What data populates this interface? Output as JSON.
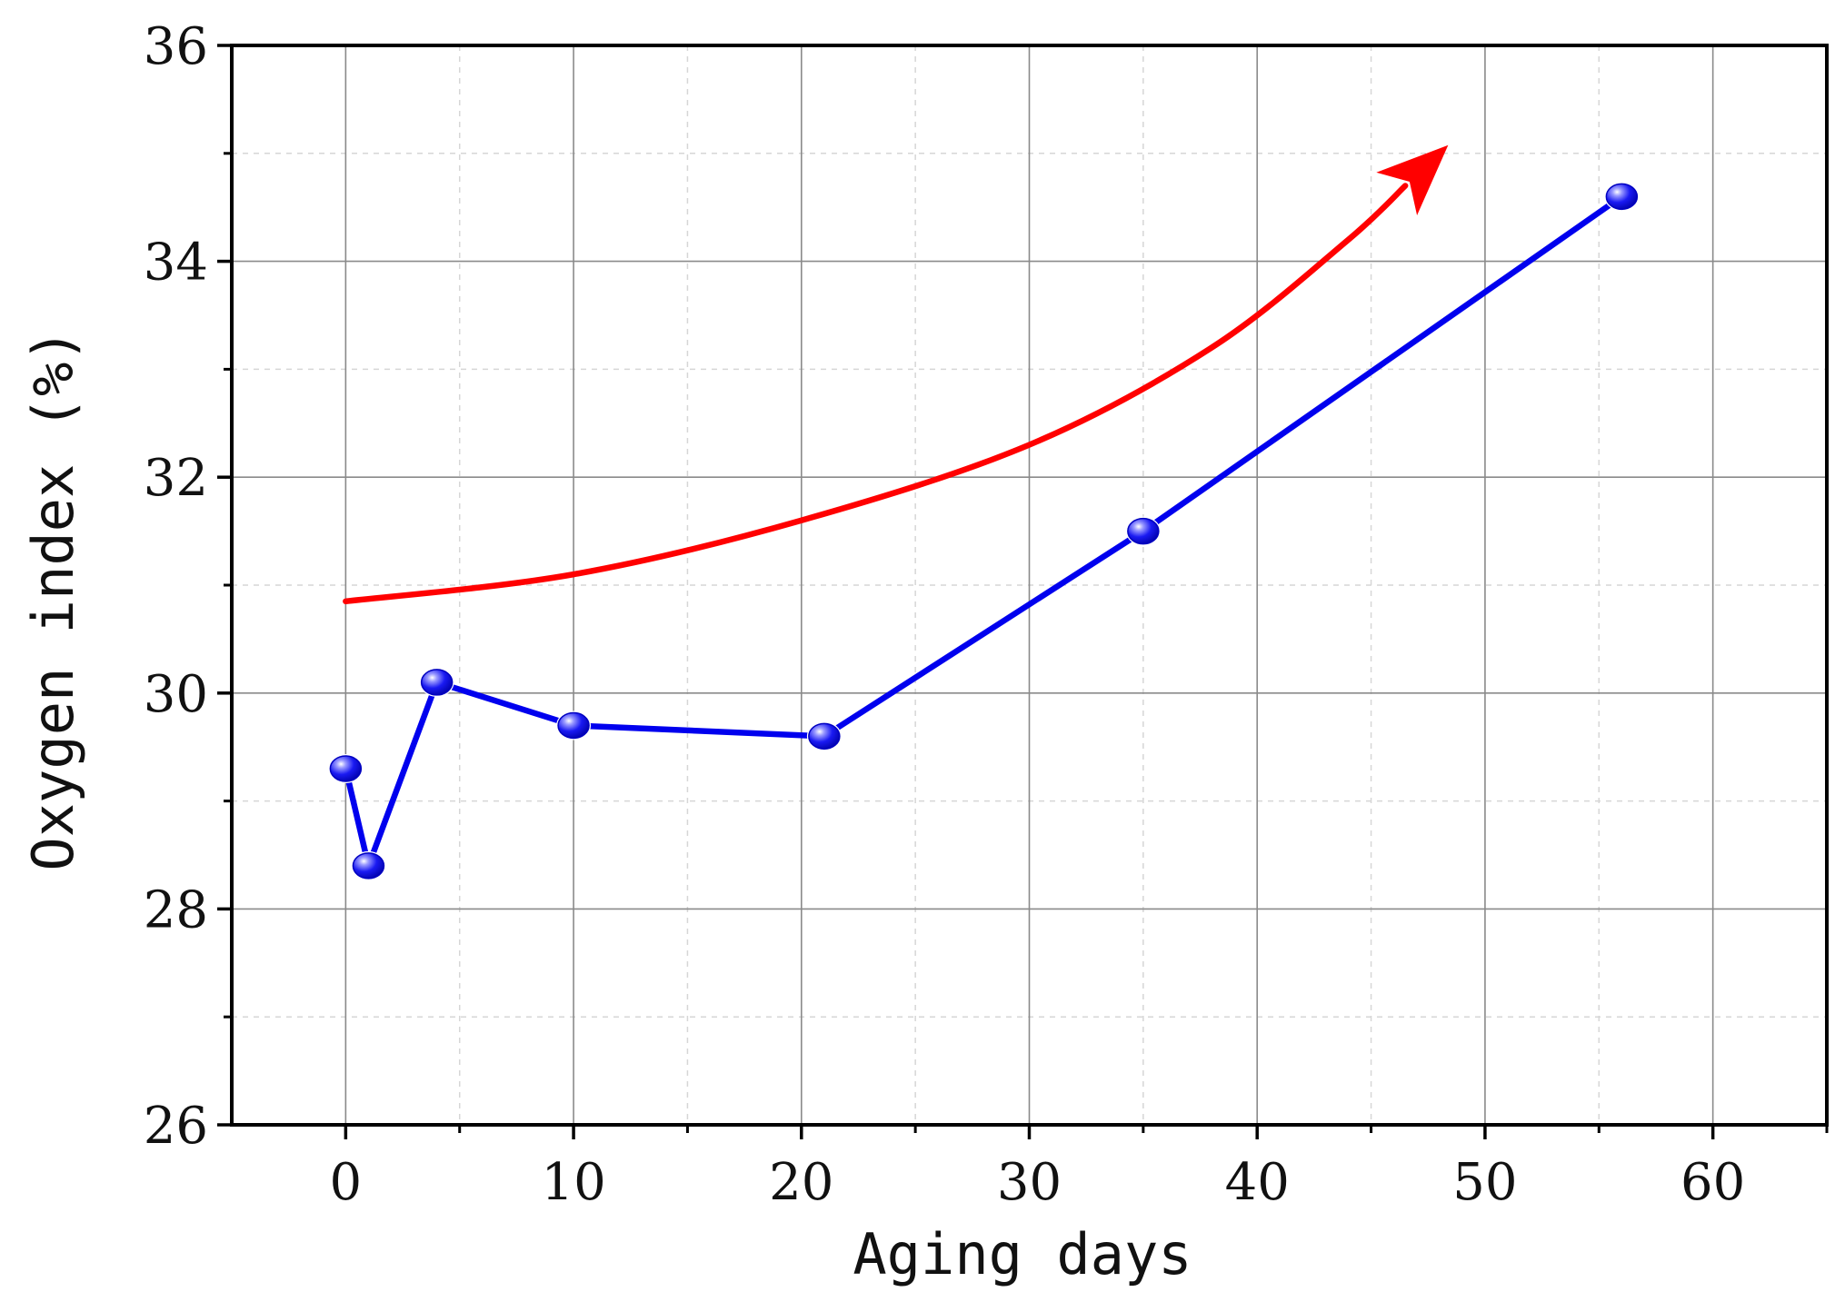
{
  "chart_data": {
    "type": "line",
    "title": "",
    "xlabel": "Aging days",
    "ylabel": "Oxygen index (%)",
    "xlim": [
      -5,
      65
    ],
    "ylim": [
      26,
      36
    ],
    "x_ticks": [
      0,
      10,
      20,
      30,
      40,
      50,
      60
    ],
    "x_minor_ticks": [
      5,
      15,
      25,
      35,
      45,
      55,
      65
    ],
    "y_ticks": [
      26,
      28,
      30,
      32,
      34,
      36
    ],
    "y_minor_ticks": [
      27,
      29,
      31,
      33,
      35
    ],
    "x_tick_labels": [
      "0",
      "10",
      "20",
      "30",
      "40",
      "50",
      "60"
    ],
    "y_tick_labels": [
      "26",
      "28",
      "30",
      "32",
      "34",
      "36"
    ],
    "grid": true,
    "legend": "none",
    "series": [
      {
        "x": [
          0,
          1,
          4,
          10,
          21,
          35,
          56
        ],
        "y": [
          29.3,
          28.4,
          30.1,
          29.7,
          29.6,
          31.5,
          34.6
        ],
        "color": "#0000ee",
        "marker": "glossy-sphere"
      }
    ],
    "annotations": [
      {
        "type": "trend-arrow",
        "color": "#ff0000",
        "x": [
          0,
          10,
          20,
          30,
          38,
          44,
          46.5
        ],
        "y": [
          30.85,
          31.1,
          31.6,
          32.3,
          33.2,
          34.2,
          34.7
        ]
      }
    ]
  }
}
